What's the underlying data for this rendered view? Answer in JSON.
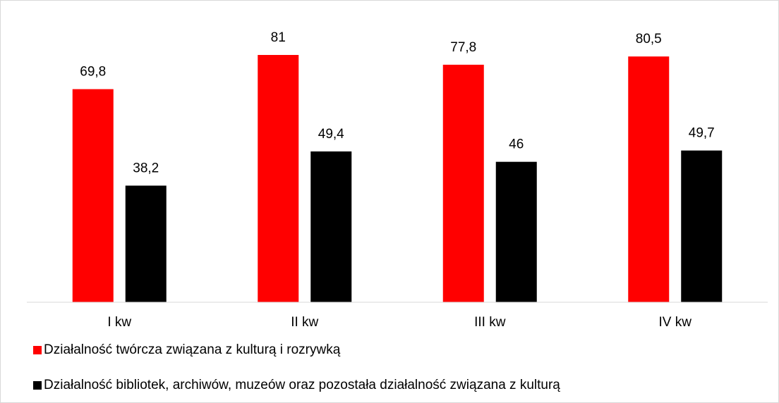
{
  "chart_data": {
    "type": "bar",
    "categories": [
      "I kw",
      "II kw",
      "III kw",
      "IV kw"
    ],
    "series": [
      {
        "name": "Działalność twórcza związana z kulturą i rozrywką",
        "color": "#ff0000",
        "values": [
          69.8,
          81,
          77.8,
          80.5
        ],
        "value_labels": [
          "69,8",
          "81",
          "77,8",
          "80,5"
        ]
      },
      {
        "name": "Działalność bibliotek, archiwów, muzeów oraz pozostała działalność związana z kulturą",
        "color": "#000000",
        "values": [
          38.2,
          49.4,
          46,
          49.7
        ],
        "value_labels": [
          "38,2",
          "49,4",
          "46",
          "49,7"
        ]
      }
    ],
    "ylim": [
      0,
      90
    ],
    "legend": "bottom-left"
  }
}
